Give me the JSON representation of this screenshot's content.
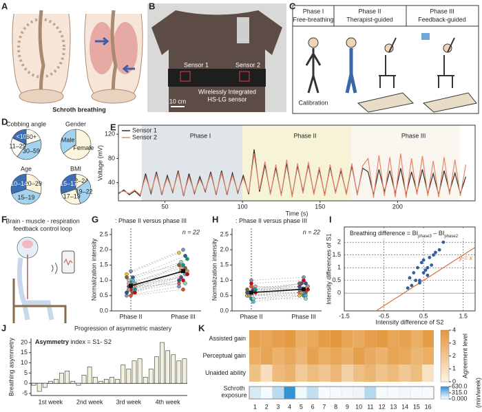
{
  "panels": {
    "A": {
      "label": "A",
      "caption": "Schroth breathing"
    },
    "B": {
      "label": "B",
      "sensor1": "Sensor 1",
      "sensor2": "Sensor 2",
      "device": [
        "Wirelessly Integrated",
        "HS-LG sensor"
      ],
      "scale_bar": "10 cm"
    },
    "C": {
      "label": "C",
      "phases": [
        {
          "title": "Phase I",
          "subtitle": "Free-breathing"
        },
        {
          "title": "Phase II",
          "subtitle": "Therapist-guided"
        },
        {
          "title": "Phase III",
          "subtitle": "Feedback-guided"
        }
      ],
      "calibration": "Calibration"
    },
    "D": {
      "label": "D"
    },
    "E": {
      "label": "E"
    },
    "F": {
      "label": "F",
      "caption": [
        "Brain - muscle - respiration",
        "feedback control loop"
      ]
    },
    "G": {
      "label": "G"
    },
    "H": {
      "label": "H"
    },
    "I": {
      "label": "I"
    },
    "J": {
      "label": "J"
    },
    "K": {
      "label": "K"
    }
  },
  "chart_data": [
    {
      "type": "pie",
      "title": "Cobbing angle",
      "categories": [
        "60+",
        "30–59",
        "11–29",
        "<10"
      ],
      "values": [
        20,
        40,
        22,
        18
      ],
      "colors": [
        "#fffdf3",
        "#a4d3ef",
        "#fffdf3",
        "#3d6db4"
      ]
    },
    {
      "type": "pie",
      "title": "Gender",
      "categories": [
        "Female",
        "Male"
      ],
      "values": [
        65,
        35
      ],
      "colors": [
        "#fbf6dc",
        "#a4d3ef"
      ]
    },
    {
      "type": "pie",
      "title": "Age",
      "categories": [
        "20–29",
        "15–19",
        "10–14"
      ],
      "values": [
        30,
        40,
        30
      ],
      "colors": [
        "#fbf6dc",
        "#a4d3ef",
        "#3d6db4"
      ]
    },
    {
      "type": "pie",
      "title": "BMI",
      "categories": [
        "22–24",
        "19–22",
        "17–19",
        "15–17"
      ],
      "values": [
        15,
        30,
        25,
        30
      ],
      "colors": [
        "#fbf6dc",
        "#a4d3ef",
        "#fbf6dc",
        "#3d6db4"
      ]
    },
    {
      "type": "line",
      "xlabel": "Time (s)",
      "ylabel": "Voltage (mV)",
      "x": [
        20,
        23.5,
        27,
        30.5,
        34,
        37.5,
        41,
        44.5,
        48,
        51.5,
        55,
        58.5,
        62,
        65.5,
        69,
        72.5,
        76,
        79.5,
        83,
        86.5,
        90,
        93.5,
        97,
        100.5,
        104,
        107.5,
        111,
        114.5,
        118,
        121.5,
        125,
        128.5,
        132,
        135.5,
        139,
        142.5,
        146,
        149.5,
        153,
        156.5,
        160,
        163.5,
        167,
        170.5,
        174,
        177.5,
        181,
        184.5,
        188,
        191.5,
        195,
        198.5,
        202,
        205.5,
        209,
        212.5,
        216,
        219.5,
        223,
        226.5,
        230,
        233.5,
        237,
        240.5,
        244
      ],
      "series": [
        {
          "name": "Sensor 1",
          "color": "#2b2b2b",
          "values": [
            22,
            28,
            20,
            26,
            18,
            55,
            22,
            58,
            20,
            52,
            24,
            60,
            18,
            55,
            22,
            50,
            25,
            58,
            20,
            60,
            20,
            56,
            23,
            52,
            21,
            95,
            25,
            70,
            22,
            65,
            20,
            72,
            18,
            68,
            25,
            70,
            22,
            62,
            20,
            66,
            24,
            60,
            22,
            68,
            21,
            64,
            58,
            20,
            62,
            25,
            60,
            22,
            64,
            20,
            58,
            24,
            62,
            22,
            55,
            20,
            60,
            25,
            56,
            22,
            50
          ]
        },
        {
          "name": "Sensor 2",
          "color": "#e8836b",
          "values": [
            24,
            26,
            22,
            28,
            20,
            50,
            25,
            54,
            22,
            48,
            26,
            56,
            20,
            50,
            24,
            46,
            27,
            54,
            22,
            56,
            22,
            52,
            25,
            48,
            23,
            88,
            28,
            75,
            20,
            70,
            18,
            78,
            16,
            72,
            22,
            74,
            20,
            66,
            18,
            70,
            22,
            64,
            20,
            72,
            19,
            68,
            80,
            15,
            85,
            18,
            82,
            16,
            88,
            15,
            80,
            20,
            84,
            18,
            76,
            16,
            82,
            20,
            78,
            18,
            70
          ]
        }
      ],
      "phases": [
        {
          "label": "Phase I",
          "start": 35,
          "end": 100,
          "color": "#dfe5e8"
        },
        {
          "label": "Phase II",
          "start": 100,
          "end": 170,
          "color": "#f6f3d6"
        },
        {
          "label": "Phase III",
          "start": 170,
          "end": 240,
          "color": "#f8f6ee"
        }
      ],
      "xlim": [
        20,
        250
      ],
      "ylim": [
        10,
        135
      ],
      "xticks": [
        50,
        100,
        150,
        200
      ],
      "yticks": [
        40,
        80,
        120
      ]
    },
    {
      "type": "paired",
      "title_bold": "S1",
      "title": ": Phase II versus phase III",
      "n_label": "n = 22",
      "ylabel": "Normalization intensity",
      "categories": [
        "Phase II",
        "Phase III"
      ],
      "pairs": [
        [
          0.6,
          0.9
        ],
        [
          0.7,
          1.1
        ],
        [
          0.9,
          1.5
        ],
        [
          1.1,
          1.8
        ],
        [
          0.8,
          1.2
        ],
        [
          0.5,
          0.8
        ],
        [
          1.0,
          1.6
        ],
        [
          0.7,
          1.0
        ],
        [
          0.6,
          1.4
        ],
        [
          0.9,
          1.3
        ],
        [
          1.2,
          1.9
        ],
        [
          0.8,
          1.1
        ],
        [
          0.5,
          0.7
        ],
        [
          1.0,
          1.2
        ],
        [
          0.7,
          1.7
        ],
        [
          0.6,
          1.0
        ],
        [
          0.9,
          1.4
        ],
        [
          1.3,
          2.0
        ],
        [
          0.8,
          0.9
        ],
        [
          0.6,
          1.2
        ],
        [
          1.1,
          1.5
        ],
        [
          0.7,
          1.3
        ]
      ],
      "mean": [
        0.82,
        1.3
      ],
      "point_colors": [
        "#e64b35",
        "#4dbbd5",
        "#00a087",
        "#3c5488",
        "#f39b7f",
        "#8491b4",
        "#91d1c2",
        "#dc0000",
        "#7e6148",
        "#b09c85",
        "#f0c020",
        "#6a3d9a"
      ],
      "ylim": [
        0,
        2.7
      ],
      "yticks": [
        {
          "value": 0,
          "label": "0.0"
        },
        {
          "value": 0.5,
          "label": "0.5"
        },
        {
          "value": 1,
          "label": "1.0"
        },
        {
          "value": 1.5,
          "label": "1.5"
        },
        {
          "value": 2,
          "label": "2.0"
        },
        {
          "value": 2.5,
          "label": "2.5"
        }
      ]
    },
    {
      "type": "paired",
      "title_bold": "S2",
      "title": ": Phase II versus phase III",
      "n_label": "n = 22",
      "ylabel": "Normalization intensity",
      "categories": [
        "Phase II",
        "Phase III"
      ],
      "pairs": [
        [
          0.5,
          0.6
        ],
        [
          0.6,
          0.7
        ],
        [
          0.4,
          0.5
        ],
        [
          0.7,
          0.9
        ],
        [
          0.8,
          0.8
        ],
        [
          0.5,
          0.7
        ],
        [
          0.6,
          0.6
        ],
        [
          0.9,
          1.0
        ],
        [
          0.4,
          0.6
        ],
        [
          0.7,
          0.8
        ],
        [
          0.5,
          0.5
        ],
        [
          0.6,
          0.9
        ],
        [
          0.8,
          0.7
        ],
        [
          0.3,
          0.5
        ],
        [
          0.7,
          0.7
        ],
        [
          0.6,
          0.8
        ],
        [
          0.5,
          0.6
        ],
        [
          1.0,
          1.1
        ],
        [
          0.4,
          0.4
        ],
        [
          0.6,
          0.7
        ],
        [
          0.7,
          0.9
        ],
        [
          0.5,
          0.6
        ]
      ],
      "mean": [
        0.6,
        0.71
      ],
      "point_colors": [
        "#e64b35",
        "#4dbbd5",
        "#00a087",
        "#3c5488",
        "#f39b7f",
        "#8491b4",
        "#91d1c2",
        "#dc0000",
        "#7e6148",
        "#b09c85",
        "#f0c020",
        "#6a3d9a"
      ],
      "ylim": [
        0,
        2.7
      ],
      "yticks": [
        {
          "value": 0,
          "label": "0.0"
        },
        {
          "value": 0.5,
          "label": "0.5"
        },
        {
          "value": 1,
          "label": "1.0"
        },
        {
          "value": 1.5,
          "label": "1.5"
        },
        {
          "value": 2,
          "label": "2.0"
        },
        {
          "value": 2.5,
          "label": "2.5"
        }
      ]
    },
    {
      "type": "scatter",
      "annotation": [
        "Breathing difference = BI",
        "phase3",
        " – BI",
        "phase2"
      ],
      "line_label": "y = x",
      "xlabel": "Intensity difference of S2",
      "ylabel": "Intensity differences of S1",
      "x": [
        0.1,
        0.2,
        0.3,
        0.15,
        0.4,
        0.5,
        0.35,
        0.6,
        0.45,
        0.7,
        0.55,
        0.8,
        0.25,
        0.65,
        0.9,
        0.5,
        1.0,
        0.75,
        1.1,
        0.4,
        1.3,
        0.6
      ],
      "values": [
        0.2,
        0.3,
        0.5,
        0.6,
        0.4,
        0.8,
        1.0,
        0.7,
        1.2,
        1.1,
        0.9,
        1.6,
        0.8,
        1.4,
        1.7,
        1.3,
        2.0,
        1.5,
        2.2,
        0.5,
        2.4,
        1.0
      ],
      "color": "#2f5f9e",
      "line_color": "#d9703a",
      "xlim": [
        -1.5,
        1.8
      ],
      "ylim": [
        -0.7,
        2.6
      ],
      "xticks": [
        -1.5,
        -0.5,
        0.5,
        1.5
      ],
      "yticks": [
        0,
        0.5,
        1,
        1.5,
        2
      ],
      "grid": true
    },
    {
      "type": "bar",
      "title": "Progression of asymmetric mastery",
      "annotation_bold": "Asymmetry",
      "annotation": " index = S1- S2",
      "ylabel": "Breathing asymmetry",
      "week_labels": [
        "1st week",
        "2nd week",
        "3rd week",
        "4th week"
      ],
      "values": [
        -1,
        -4,
        -2,
        1,
        2,
        5,
        6,
        1,
        -1,
        4,
        8,
        3,
        1,
        2,
        3,
        2,
        9,
        7,
        11,
        12,
        3,
        7,
        13,
        20,
        16,
        14,
        11,
        12
      ],
      "color": "#f1f0dc",
      "ylim": [
        -6,
        22
      ],
      "yticks": [
        -5,
        0,
        5,
        10,
        15,
        20
      ]
    },
    {
      "type": "heatmap",
      "rows": [
        "Assisted gain",
        "Perceptual gain",
        "Unaided ability"
      ],
      "columns": [
        1,
        2,
        3,
        4,
        5,
        6,
        7,
        8,
        9,
        10,
        11,
        12,
        13,
        14,
        15,
        16
      ],
      "values": [
        [
          3.5,
          3.3,
          3.6,
          3.8,
          2.9,
          3.2,
          3.7,
          3.9,
          3.4,
          3.1,
          3.6,
          3.8,
          3.3,
          3.5,
          3.0,
          3.7
        ],
        [
          3.0,
          3.4,
          2.8,
          3.2,
          2.6,
          3.5,
          3.0,
          3.3,
          2.9,
          3.6,
          3.1,
          2.8,
          3.4,
          3.2,
          2.7,
          3.0
        ],
        [
          2.2,
          1.0,
          2.5,
          2.8,
          1.8,
          2.4,
          2.0,
          2.6,
          1.5,
          2.3,
          2.7,
          2.1,
          2.5,
          1.9,
          2.4,
          0.8
        ]
      ],
      "colorbar_label": "Agreement level",
      "zlim": [
        0,
        4
      ],
      "zticks": [
        0,
        1,
        2,
        3,
        4
      ],
      "colors": [
        "#fdf5e6",
        "#e3963a"
      ],
      "exposure": {
        "label": [
          "Schroth",
          "exposure"
        ],
        "values": [
          120,
          30,
          200,
          600,
          40,
          180,
          20,
          30,
          40,
          50,
          220,
          30,
          20,
          40,
          30,
          20
        ],
        "zlim": [
          0,
          630
        ],
        "zticks": [
          {
            "value": 0,
            "label": "0.000"
          },
          {
            "value": 315,
            "label": "315.0"
          },
          {
            "value": 630,
            "label": "630.0"
          }
        ],
        "unit_label": "(min/week)",
        "colors": [
          "#ffffff",
          "#2a8fd1"
        ]
      }
    }
  ]
}
